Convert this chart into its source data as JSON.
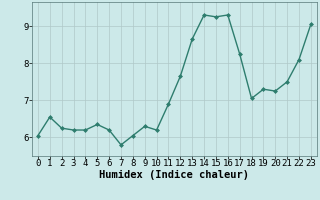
{
  "x": [
    0,
    1,
    2,
    3,
    4,
    5,
    6,
    7,
    8,
    9,
    10,
    11,
    12,
    13,
    14,
    15,
    16,
    17,
    18,
    19,
    20,
    21,
    22,
    23
  ],
  "y": [
    6.05,
    6.55,
    6.25,
    6.2,
    6.2,
    6.35,
    6.2,
    5.8,
    6.05,
    6.3,
    6.2,
    6.9,
    7.65,
    8.65,
    9.3,
    9.25,
    9.3,
    8.25,
    7.05,
    7.3,
    7.25,
    7.5,
    8.1,
    9.05
  ],
  "line_color": "#2e7d6e",
  "marker": "D",
  "marker_size": 2.0,
  "bg_color": "#cce9e9",
  "grid_color": "#b0c8c8",
  "xlabel": "Humidex (Indice chaleur)",
  "xlim": [
    -0.5,
    23.5
  ],
  "ylim": [
    5.5,
    9.65
  ],
  "yticks": [
    6,
    7,
    8,
    9
  ],
  "xticks": [
    0,
    1,
    2,
    3,
    4,
    5,
    6,
    7,
    8,
    9,
    10,
    11,
    12,
    13,
    14,
    15,
    16,
    17,
    18,
    19,
    20,
    21,
    22,
    23
  ],
  "xlabel_fontsize": 7.5,
  "tick_fontsize": 6.5,
  "line_width": 1.0
}
